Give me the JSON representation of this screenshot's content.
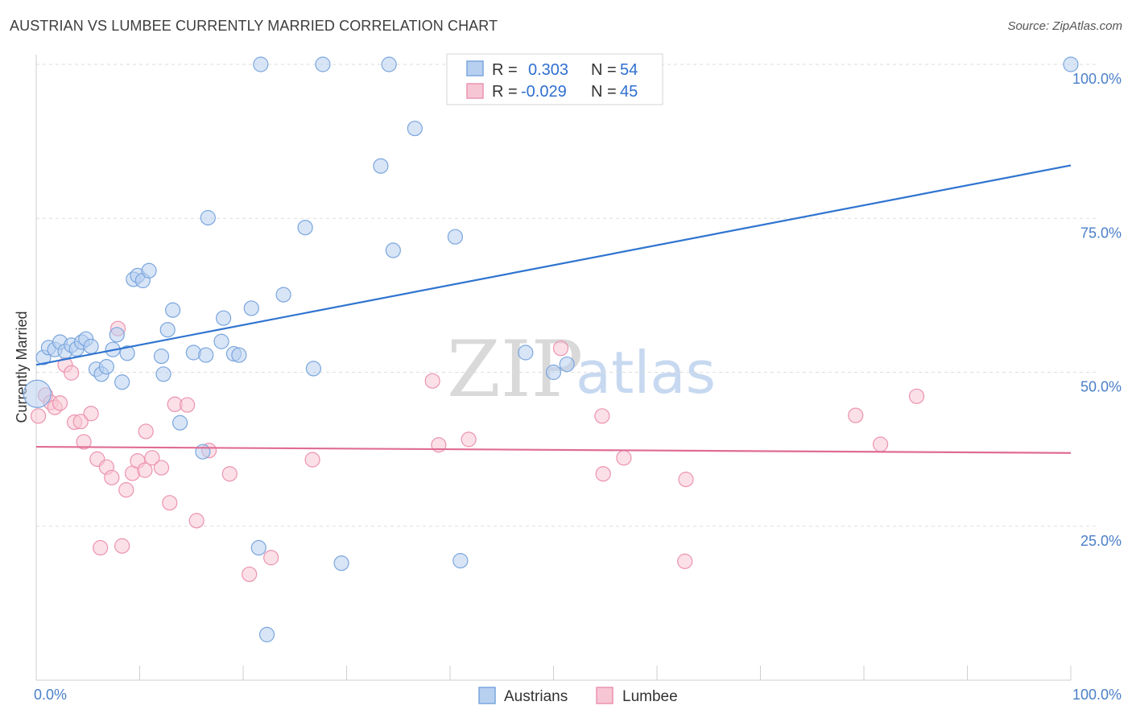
{
  "title": "AUSTRIAN VS LUMBEE CURRENTLY MARRIED CORRELATION CHART",
  "source": "Source: ZipAtlas.com",
  "watermark": {
    "zip": "ZIP",
    "atlas": "atlas"
  },
  "colors": {
    "austrians_fill": "#b8d0f0",
    "austrians_stroke": "#7aa6dd",
    "austrians_line": "#2f74d0",
    "lumbee_fill": "#f7c6d4",
    "lumbee_stroke": "#ec93b0",
    "lumbee_line": "#e06c95"
  },
  "legend": {
    "rows": [
      {
        "r_label": "R = ",
        "r_value": "0.303",
        "n_label": "N = ",
        "n_value": "54"
      },
      {
        "r_label": "R = ",
        "r_value": "-0.029",
        "n_label": "N = ",
        "n_value": "45"
      }
    ]
  },
  "chart_data": {
    "type": "scatter",
    "title": "AUSTRIAN VS LUMBEE CURRENTLY MARRIED CORRELATION CHART",
    "xlabel": "",
    "ylabel": "Currently Married",
    "xlim": [
      0,
      100
    ],
    "ylim": [
      0,
      100
    ],
    "x_tick_labels": [
      "0.0%",
      "100.0%"
    ],
    "y_ticks": [
      25,
      50,
      75,
      100
    ],
    "y_tick_labels": [
      "25.0%",
      "50.0%",
      "75.0%",
      "100.0%"
    ],
    "grid": true,
    "legend_position": "top-center",
    "series": [
      {
        "name": "Austrians",
        "r": 0.303,
        "n": 54,
        "trend": {
          "x": [
            0,
            100
          ],
          "y": [
            51.2,
            83.6
          ]
        },
        "points": [
          {
            "x": 0.1,
            "y": 46.5,
            "big": true
          },
          {
            "x": 0.7,
            "y": 52.4
          },
          {
            "x": 1.2,
            "y": 54.0
          },
          {
            "x": 1.8,
            "y": 53.7
          },
          {
            "x": 2.3,
            "y": 54.9
          },
          {
            "x": 2.8,
            "y": 53.4
          },
          {
            "x": 3.4,
            "y": 54.4
          },
          {
            "x": 3.9,
            "y": 53.8
          },
          {
            "x": 4.4,
            "y": 54.9
          },
          {
            "x": 4.8,
            "y": 55.4
          },
          {
            "x": 5.3,
            "y": 54.2
          },
          {
            "x": 5.8,
            "y": 50.5
          },
          {
            "x": 6.3,
            "y": 49.7
          },
          {
            "x": 6.8,
            "y": 50.9
          },
          {
            "x": 7.4,
            "y": 53.7
          },
          {
            "x": 7.8,
            "y": 56.1
          },
          {
            "x": 8.3,
            "y": 48.4
          },
          {
            "x": 8.8,
            "y": 53.1
          },
          {
            "x": 9.4,
            "y": 65.1
          },
          {
            "x": 9.8,
            "y": 65.7
          },
          {
            "x": 10.3,
            "y": 64.9
          },
          {
            "x": 10.9,
            "y": 66.5
          },
          {
            "x": 12.3,
            "y": 49.7
          },
          {
            "x": 12.7,
            "y": 56.9
          },
          {
            "x": 13.2,
            "y": 60.1
          },
          {
            "x": 12.1,
            "y": 52.6
          },
          {
            "x": 13.9,
            "y": 41.8
          },
          {
            "x": 15.2,
            "y": 53.2
          },
          {
            "x": 16.4,
            "y": 52.8
          },
          {
            "x": 16.6,
            "y": 75.1
          },
          {
            "x": 16.1,
            "y": 37.1
          },
          {
            "x": 17.9,
            "y": 55.0
          },
          {
            "x": 18.1,
            "y": 58.8
          },
          {
            "x": 19.1,
            "y": 53.0
          },
          {
            "x": 19.6,
            "y": 52.8
          },
          {
            "x": 20.8,
            "y": 60.4
          },
          {
            "x": 21.5,
            "y": 21.5
          },
          {
            "x": 21.7,
            "y": 100.0
          },
          {
            "x": 22.3,
            "y": 7.4
          },
          {
            "x": 23.9,
            "y": 62.6
          },
          {
            "x": 26.0,
            "y": 73.5
          },
          {
            "x": 26.8,
            "y": 50.6
          },
          {
            "x": 27.7,
            "y": 100.0
          },
          {
            "x": 29.5,
            "y": 19.0
          },
          {
            "x": 33.3,
            "y": 83.5
          },
          {
            "x": 34.1,
            "y": 100.0
          },
          {
            "x": 34.5,
            "y": 69.8
          },
          {
            "x": 36.6,
            "y": 89.6
          },
          {
            "x": 40.5,
            "y": 72.0
          },
          {
            "x": 41.0,
            "y": 19.4
          },
          {
            "x": 47.3,
            "y": 53.2
          },
          {
            "x": 50.0,
            "y": 50.0
          },
          {
            "x": 51.3,
            "y": 51.3
          },
          {
            "x": 100.0,
            "y": 100.0
          }
        ]
      },
      {
        "name": "Lumbee",
        "r": -0.029,
        "n": 45,
        "trend": {
          "x": [
            0,
            100
          ],
          "y": [
            37.9,
            36.9
          ]
        },
        "points": [
          {
            "x": 0.2,
            "y": 42.9
          },
          {
            "x": 0.9,
            "y": 46.3
          },
          {
            "x": 1.4,
            "y": 45.1
          },
          {
            "x": 1.8,
            "y": 44.3
          },
          {
            "x": 2.3,
            "y": 45.0
          },
          {
            "x": 2.8,
            "y": 51.2
          },
          {
            "x": 3.4,
            "y": 49.9
          },
          {
            "x": 3.7,
            "y": 41.9
          },
          {
            "x": 4.3,
            "y": 42.0
          },
          {
            "x": 4.6,
            "y": 38.7
          },
          {
            "x": 5.3,
            "y": 43.3
          },
          {
            "x": 5.9,
            "y": 35.9
          },
          {
            "x": 6.2,
            "y": 21.5
          },
          {
            "x": 6.8,
            "y": 34.6
          },
          {
            "x": 7.3,
            "y": 32.9
          },
          {
            "x": 7.9,
            "y": 57.1
          },
          {
            "x": 8.3,
            "y": 21.8
          },
          {
            "x": 8.7,
            "y": 30.9
          },
          {
            "x": 9.3,
            "y": 33.6
          },
          {
            "x": 9.8,
            "y": 35.6
          },
          {
            "x": 10.5,
            "y": 34.1
          },
          {
            "x": 10.6,
            "y": 40.4
          },
          {
            "x": 11.2,
            "y": 36.1
          },
          {
            "x": 12.1,
            "y": 34.5
          },
          {
            "x": 12.9,
            "y": 28.8
          },
          {
            "x": 13.4,
            "y": 44.8
          },
          {
            "x": 14.6,
            "y": 44.7
          },
          {
            "x": 15.5,
            "y": 25.9
          },
          {
            "x": 16.7,
            "y": 37.3
          },
          {
            "x": 18.7,
            "y": 33.5
          },
          {
            "x": 20.6,
            "y": 17.2
          },
          {
            "x": 22.7,
            "y": 19.9
          },
          {
            "x": 26.7,
            "y": 35.8
          },
          {
            "x": 38.3,
            "y": 48.6
          },
          {
            "x": 38.9,
            "y": 38.2
          },
          {
            "x": 41.8,
            "y": 39.1
          },
          {
            "x": 50.7,
            "y": 53.9
          },
          {
            "x": 54.7,
            "y": 42.9
          },
          {
            "x": 54.8,
            "y": 33.5
          },
          {
            "x": 56.8,
            "y": 36.1
          },
          {
            "x": 62.8,
            "y": 32.6
          },
          {
            "x": 62.7,
            "y": 19.3
          },
          {
            "x": 79.2,
            "y": 43.0
          },
          {
            "x": 81.6,
            "y": 38.3
          },
          {
            "x": 85.1,
            "y": 46.1
          }
        ]
      }
    ]
  }
}
